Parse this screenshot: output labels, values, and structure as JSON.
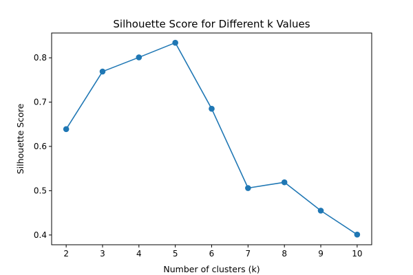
{
  "chart_data": {
    "type": "line",
    "title": "Silhouette Score for Different k Values",
    "xlabel": "Number of clusters (k)",
    "ylabel": "Silhouette Score",
    "x": [
      2,
      3,
      4,
      5,
      6,
      7,
      8,
      9,
      10
    ],
    "series": [
      {
        "values": [
          0.639,
          0.769,
          0.801,
          0.834,
          0.685,
          0.506,
          0.519,
          0.455,
          0.401
        ],
        "color": "#1f77b4",
        "marker": "circle"
      }
    ],
    "xlim": [
      1.6,
      10.4
    ],
    "ylim": [
      0.378,
      0.856
    ],
    "xticks": [
      2,
      3,
      4,
      5,
      6,
      7,
      8,
      9,
      10
    ],
    "yticks": [
      0.4,
      0.5,
      0.6,
      0.7,
      0.8
    ],
    "grid": false,
    "legend": "none"
  }
}
